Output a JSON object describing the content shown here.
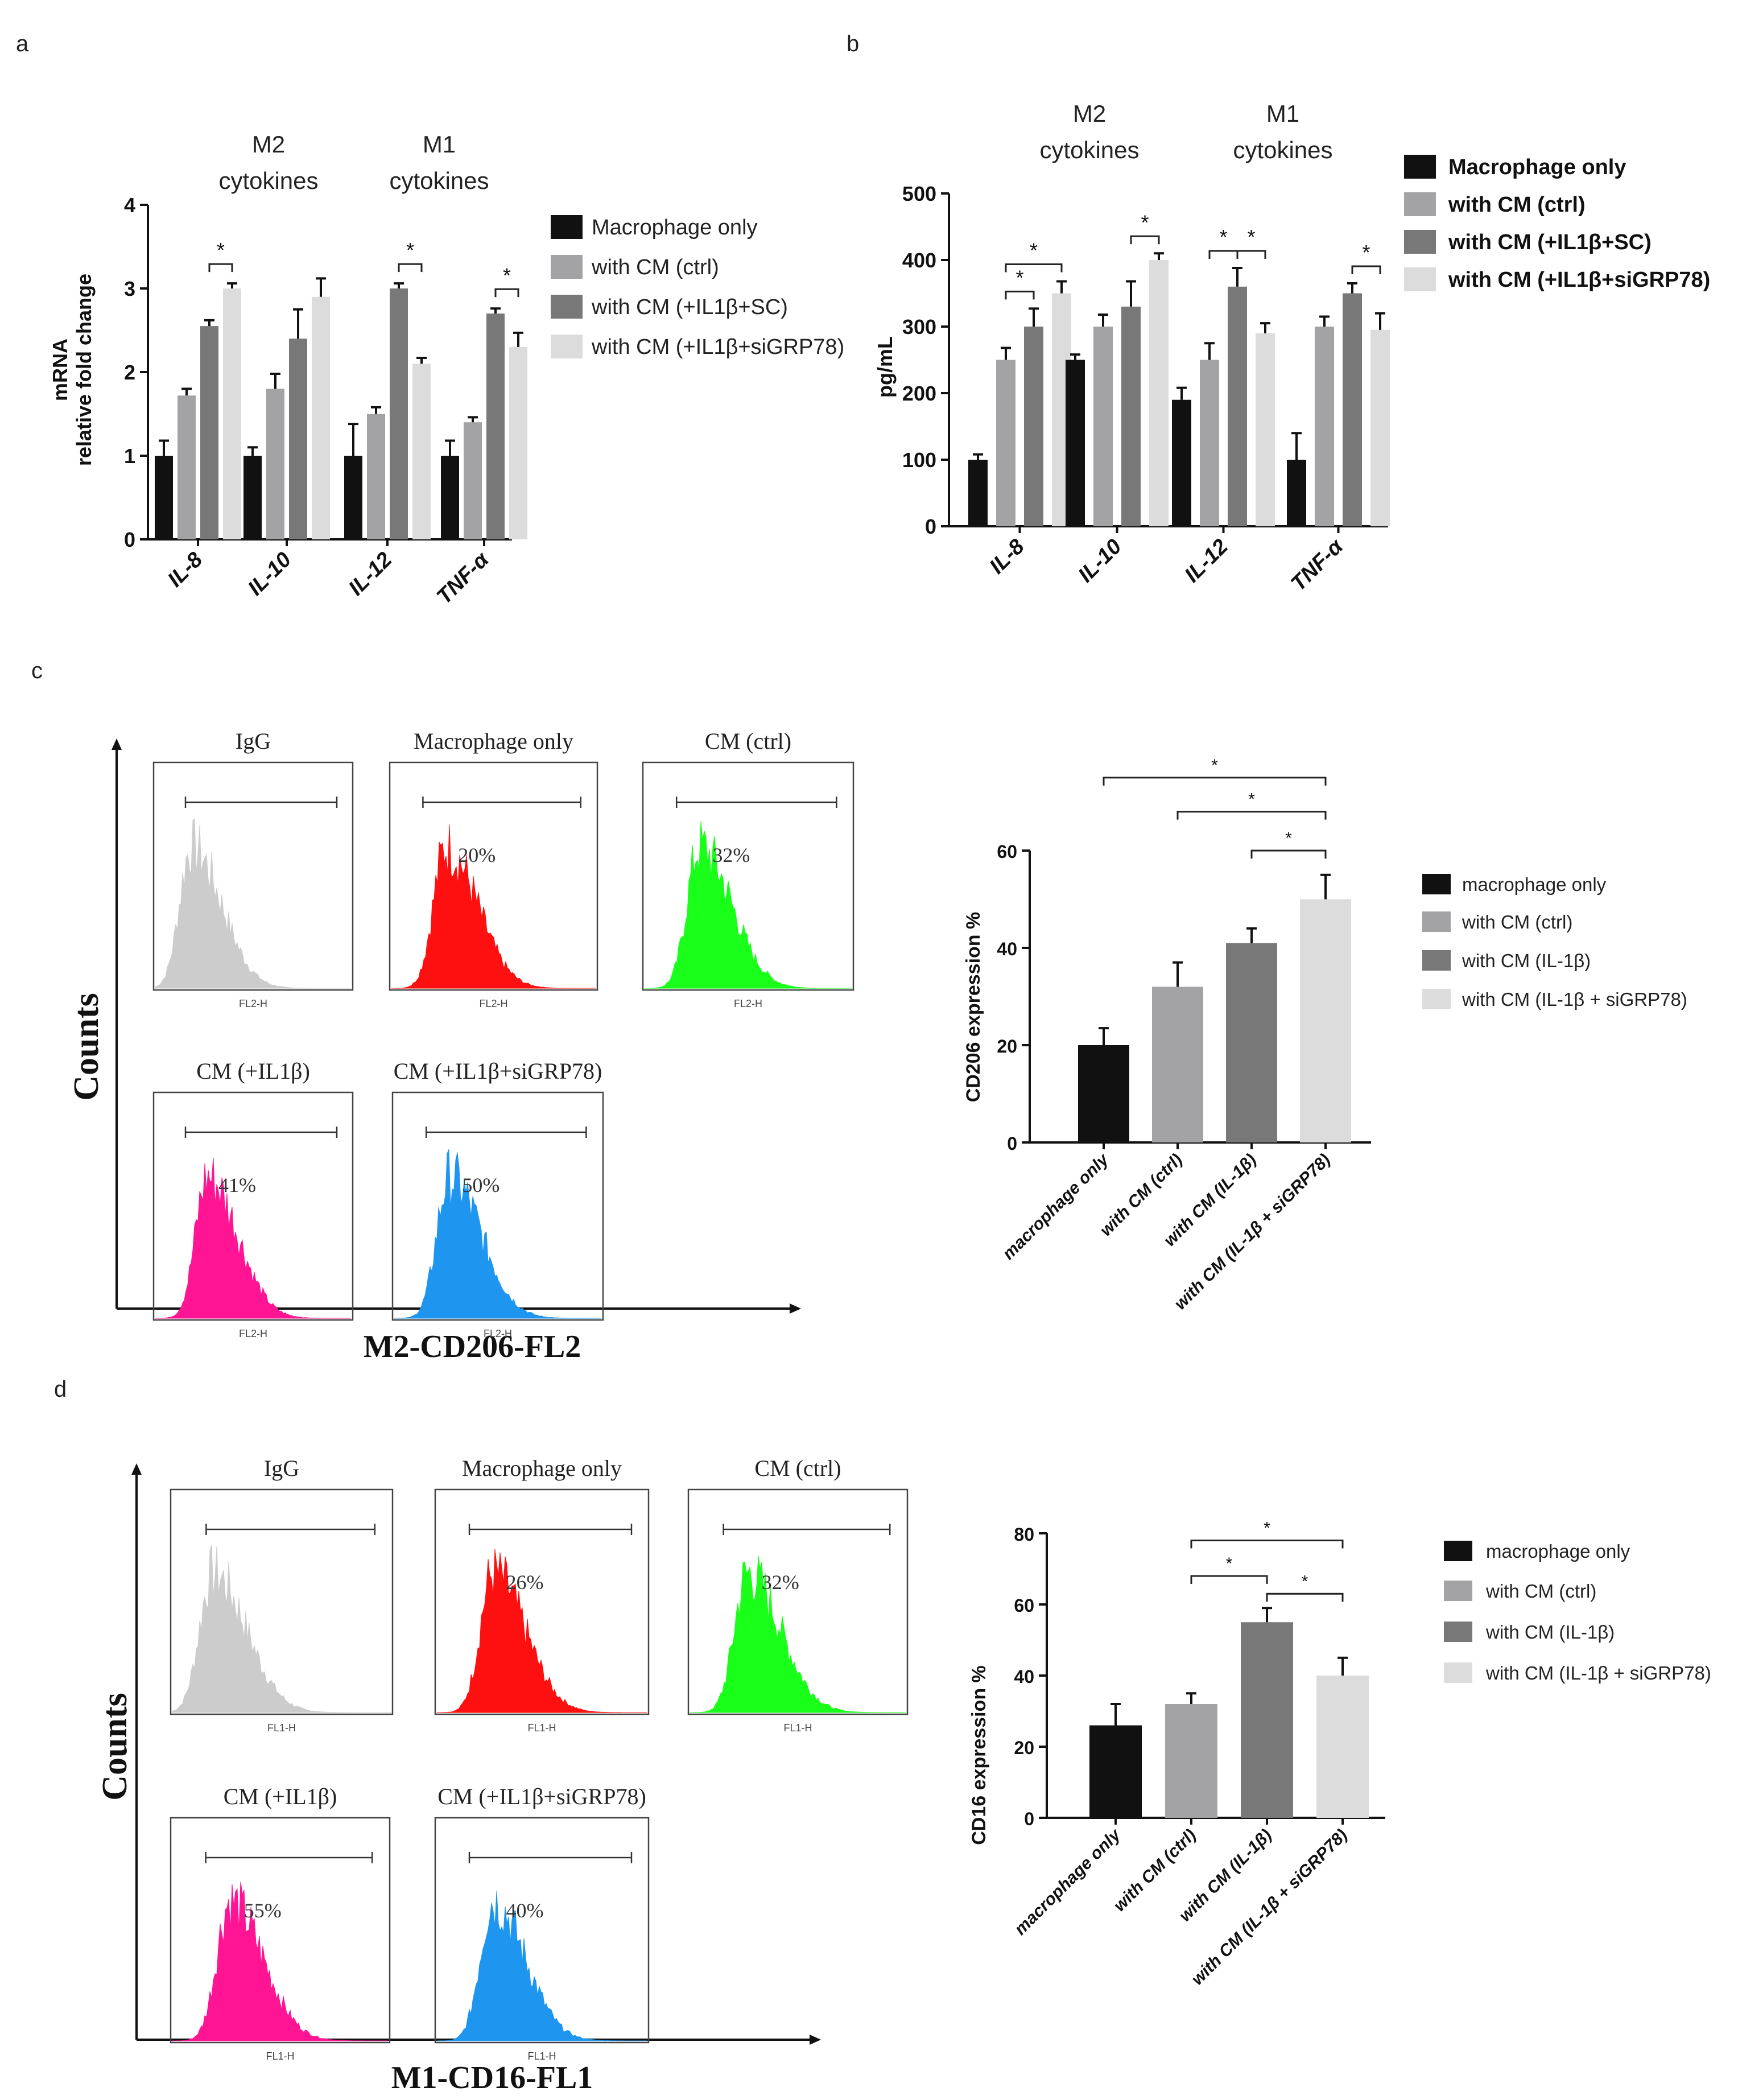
{
  "panel_labels": {
    "a": "a",
    "b": "b",
    "c": "c",
    "d": "d"
  },
  "legend_ab": {
    "a": [
      "Macrophage only",
      "with CM (ctrl)",
      "with CM (+IL1β+SC)",
      "with CM (+IL1β+siGRP78)"
    ],
    "b": [
      "Macrophage only",
      "with CM (ctrl)",
      "with CM (+IL1β+SC)",
      "with CM (+IL1β+siGRP78)"
    ]
  },
  "legend_cd": [
    "macrophage only",
    "with CM (ctrl)",
    "with CM (IL-1β)",
    "with CM (IL-1β + siGRP78)"
  ],
  "colors": {
    "black": "#111111",
    "ctrl": "#a3a3a6",
    "il1b": "#787878",
    "sigrp": "#dcdcdc"
  },
  "group_headers": {
    "m2": [
      "M2",
      "cytokines"
    ],
    "m1": [
      "M1",
      "cytokines"
    ]
  },
  "flow_c": {
    "axis_title_y": "Counts",
    "axis_title_x": "M2-CD206-FL2",
    "channel_label": "FL2-H",
    "panels": [
      {
        "title": "IgG",
        "pct": "",
        "color": "#cccccc"
      },
      {
        "title": "Macrophage only",
        "pct": "20%",
        "color": "#ff1010"
      },
      {
        "title": "CM (ctrl)",
        "pct": "32%",
        "color": "#1aff1a"
      },
      {
        "title": "CM (+IL1β)",
        "pct": "41%",
        "color": "#ff1493"
      },
      {
        "title": "CM (+IL1β+siGRP78)",
        "pct": "50%",
        "color": "#1e96f0"
      }
    ]
  },
  "flow_d": {
    "axis_title_y": "Counts",
    "axis_title_x": "M1-CD16-FL1",
    "channel_label": "FL1-H",
    "panels": [
      {
        "title": "IgG",
        "pct": "",
        "color": "#cccccc"
      },
      {
        "title": "Macrophage only",
        "pct": "26%",
        "color": "#ff1010"
      },
      {
        "title": "CM (ctrl)",
        "pct": "32%",
        "color": "#1aff1a"
      },
      {
        "title": "CM (+IL1β)",
        "pct": "55%",
        "color": "#ff1493"
      },
      {
        "title": "CM (+IL1β+siGRP78)",
        "pct": "40%",
        "color": "#1e96f0"
      }
    ]
  },
  "chart_data": [
    {
      "id": "a",
      "type": "bar",
      "ylabel": "mRNA relative fold change",
      "ylabel_lines": [
        "mRNA",
        "relative fold change"
      ],
      "ylim": [
        0,
        4
      ],
      "yticks": [
        0,
        1,
        2,
        3,
        4
      ],
      "categories": [
        "IL-8",
        "IL-10",
        "IL-12",
        "TNF-α"
      ],
      "series": [
        {
          "name": "Macrophage only",
          "values": [
            1.0,
            1.0,
            1.0,
            1.0
          ],
          "errors": [
            0.18,
            0.1,
            0.38,
            0.18
          ]
        },
        {
          "name": "with CM (ctrl)",
          "values": [
            1.72,
            1.8,
            1.5,
            1.4
          ],
          "errors": [
            0.08,
            0.18,
            0.08,
            0.06
          ]
        },
        {
          "name": "with CM (+IL1β+SC)",
          "values": [
            2.55,
            2.4,
            3.0,
            2.7
          ],
          "errors": [
            0.07,
            0.35,
            0.06,
            0.06
          ]
        },
        {
          "name": "with CM (+IL1β+siGRP78)",
          "values": [
            3.0,
            2.9,
            2.1,
            2.3
          ],
          "errors": [
            0.06,
            0.22,
            0.07,
            0.17
          ]
        }
      ],
      "significance": [
        "*",
        "*",
        "*"
      ]
    },
    {
      "id": "b",
      "type": "bar",
      "ylabel": "pg/mL",
      "ylim": [
        0,
        500
      ],
      "yticks": [
        0,
        100,
        200,
        300,
        400,
        500
      ],
      "categories": [
        "IL-8",
        "IL-10",
        "IL-12",
        "TNF-α"
      ],
      "series": [
        {
          "name": "Macrophage only",
          "values": [
            100,
            250,
            190,
            100
          ],
          "errors": [
            8,
            8,
            18,
            40
          ]
        },
        {
          "name": "with CM (ctrl)",
          "values": [
            250,
            300,
            250,
            300
          ],
          "errors": [
            18,
            18,
            25,
            15
          ]
        },
        {
          "name": "with CM (+IL1β+SC)",
          "values": [
            300,
            330,
            360,
            350
          ],
          "errors": [
            27,
            38,
            28,
            15
          ]
        },
        {
          "name": "with CM (+IL1β+siGRP78)",
          "values": [
            350,
            400,
            290,
            295
          ],
          "errors": [
            18,
            10,
            15,
            25
          ]
        }
      ],
      "significance": [
        "*",
        "*",
        "*",
        "*",
        "*",
        "*"
      ]
    },
    {
      "id": "c",
      "type": "bar",
      "ylabel": "CD206 expression %",
      "ylim": [
        0,
        60
      ],
      "yticks": [
        0,
        20,
        40,
        60
      ],
      "categories": [
        "macrophage only",
        "with CM (ctrl)",
        "with CM (IL-1β)",
        "with CM (IL-1β + siGRP78)"
      ],
      "values": [
        20,
        32,
        41,
        50
      ],
      "errors": [
        3.5,
        5,
        3,
        5
      ],
      "significance": [
        "*",
        "*",
        "*"
      ]
    },
    {
      "id": "d",
      "type": "bar",
      "ylabel": "CD16 expression %",
      "ylim": [
        0,
        80
      ],
      "yticks": [
        0,
        20,
        40,
        60,
        80
      ],
      "categories": [
        "macrophage only",
        "with CM (ctrl)",
        "with CM (IL-1β)",
        "with CM (IL-1β + siGRP78)"
      ],
      "values": [
        26,
        32,
        55,
        40
      ],
      "errors": [
        6,
        3,
        4,
        5
      ],
      "significance": [
        "*",
        "*",
        "*"
      ]
    }
  ]
}
